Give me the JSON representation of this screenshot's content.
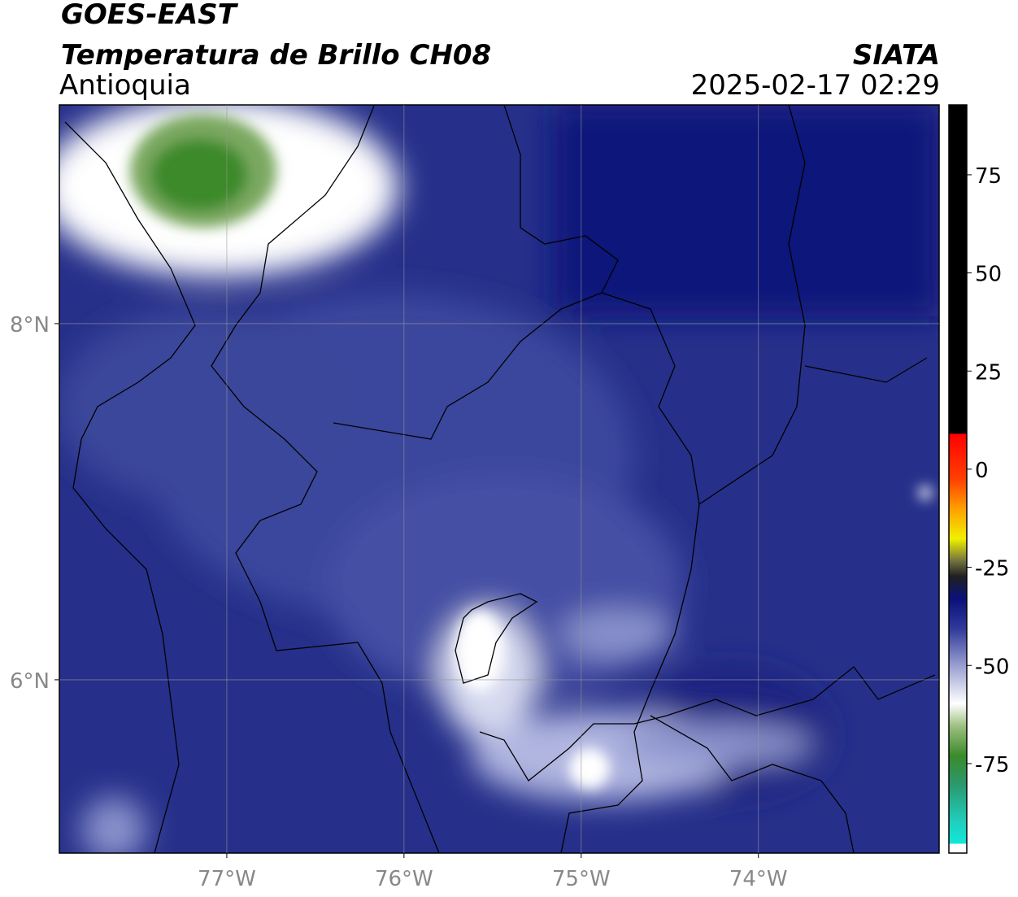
{
  "header": {
    "title": "GOES-EAST",
    "subtitle": "Temperatura de Brillo CH08",
    "region": "Antioquia",
    "source": "SIATA",
    "datetime": "2025-02-17 02:29"
  },
  "map": {
    "xlim": [
      -77.945,
      -72.98
    ],
    "ylim": [
      5.027,
      9.228
    ],
    "grid": true,
    "xticks": [
      {
        "value": -77,
        "label": "77°W"
      },
      {
        "value": -76,
        "label": "76°W"
      },
      {
        "value": -75,
        "label": "75°W"
      },
      {
        "value": -74,
        "label": "74°W"
      }
    ],
    "yticks": [
      {
        "value": 8,
        "label": "8°N"
      },
      {
        "value": 6,
        "label": "6°N"
      }
    ]
  },
  "colorbar": {
    "lim": [
      -97.8,
      92.8
    ],
    "ticks": [
      75,
      50,
      25,
      0,
      -25,
      -50,
      -75
    ]
  }
}
